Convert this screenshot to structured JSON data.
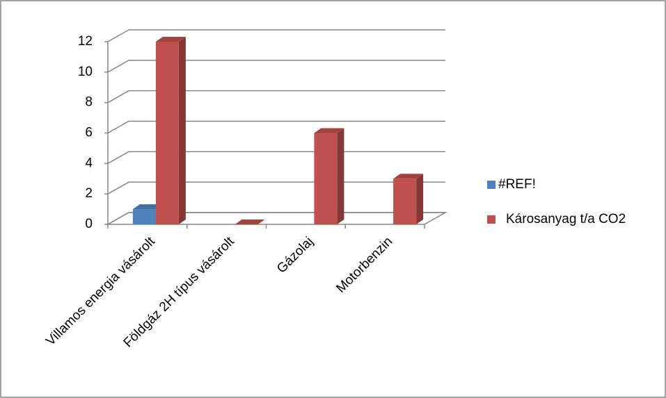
{
  "chart_data": {
    "type": "bar3d",
    "categories": [
      "Villamos energia vásárolt",
      "Földgáz 2H típus vásárolt",
      "Gázolaj",
      "Motorbenzin"
    ],
    "series": [
      {
        "name": "#REF!",
        "color": "#4f81bd",
        "values": [
          1,
          null,
          null,
          null
        ]
      },
      {
        "name": "Károsanyag t/a CO2",
        "color": "#c0504d",
        "values": [
          12,
          0,
          6,
          3
        ]
      }
    ],
    "ylim": [
      0,
      12
    ],
    "yticks": [
      0,
      2,
      4,
      6,
      8,
      10,
      12
    ],
    "grid": true,
    "legend": "right"
  }
}
